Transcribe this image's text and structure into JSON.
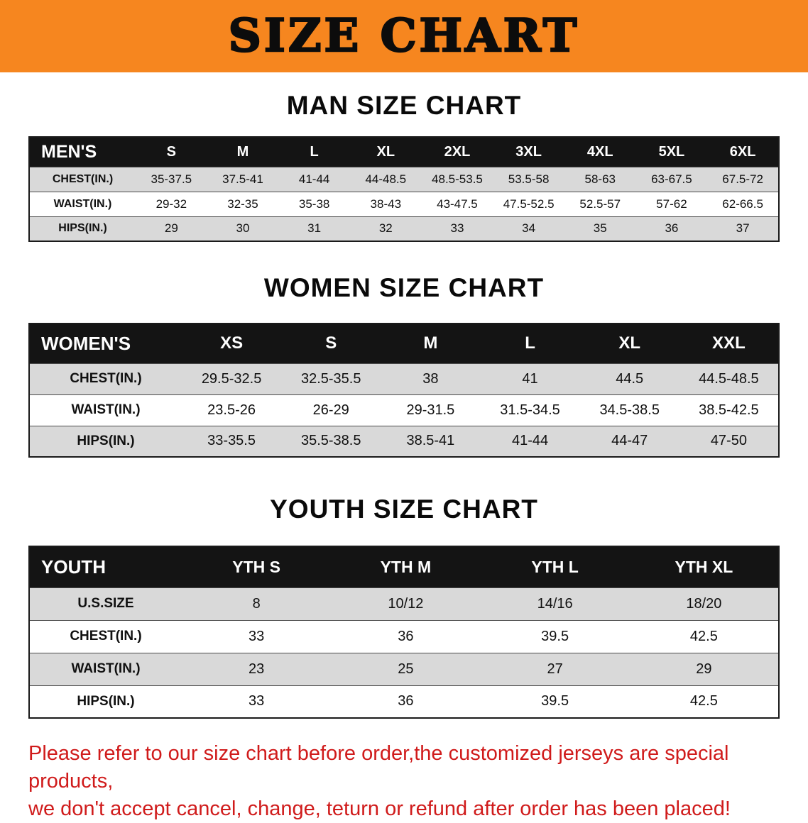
{
  "banner": {
    "title": "SIZE CHART"
  },
  "men": {
    "heading": "MAN SIZE CHART",
    "header": [
      "MEN'S",
      "S",
      "M",
      "L",
      "XL",
      "2XL",
      "3XL",
      "4XL",
      "5XL",
      "6XL"
    ],
    "rows": [
      [
        "CHEST(IN.)",
        "35-37.5",
        "37.5-41",
        "41-44",
        "44-48.5",
        "48.5-53.5",
        "53.5-58",
        "58-63",
        "63-67.5",
        "67.5-72"
      ],
      [
        "WAIST(IN.)",
        "29-32",
        "32-35",
        "35-38",
        "38-43",
        "43-47.5",
        "47.5-52.5",
        "52.5-57",
        "57-62",
        "62-66.5"
      ],
      [
        "HIPS(IN.)",
        "29",
        "30",
        "31",
        "32",
        "33",
        "34",
        "35",
        "36",
        "37"
      ]
    ]
  },
  "women": {
    "heading": "WOMEN SIZE CHART",
    "header": [
      "WOMEN'S",
      "XS",
      "S",
      "M",
      "L",
      "XL",
      "XXL"
    ],
    "rows": [
      [
        "CHEST(IN.)",
        "29.5-32.5",
        "32.5-35.5",
        "38",
        "41",
        "44.5",
        "44.5-48.5"
      ],
      [
        "WAIST(IN.)",
        "23.5-26",
        "26-29",
        "29-31.5",
        "31.5-34.5",
        "34.5-38.5",
        "38.5-42.5"
      ],
      [
        "HIPS(IN.)",
        "33-35.5",
        "35.5-38.5",
        "38.5-41",
        "41-44",
        "44-47",
        "47-50"
      ]
    ]
  },
  "youth": {
    "heading": "YOUTH SIZE CHART",
    "header": [
      "YOUTH",
      "YTH S",
      "YTH M",
      "YTH L",
      "YTH XL"
    ],
    "rows": [
      [
        "U.S.SIZE",
        "8",
        "10/12",
        "14/16",
        "18/20"
      ],
      [
        "CHEST(IN.)",
        "33",
        "36",
        "39.5",
        "42.5"
      ],
      [
        "WAIST(IN.)",
        "23",
        "25",
        "27",
        "29"
      ],
      [
        "HIPS(IN.)",
        "33",
        "36",
        "39.5",
        "42.5"
      ]
    ]
  },
  "footer": {
    "line1": "Please refer to our size chart before order,the customized jerseys are special products,",
    "line2": "we don't accept cancel, change, teturn or refund after order has been placed!"
  }
}
